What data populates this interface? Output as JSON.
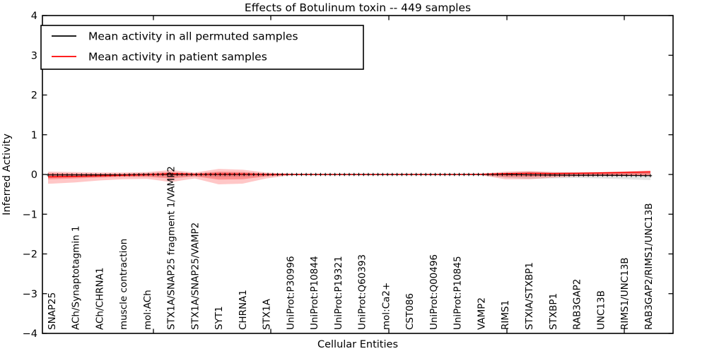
{
  "title": "Effects of Botulinum toxin -- 449 samples",
  "legend": {
    "items": [
      {
        "label": "Mean activity in all permuted samples",
        "color": "#000000"
      },
      {
        "label": "Mean activity in patient samples",
        "color": "#ff0000"
      }
    ]
  },
  "chart_data": {
    "type": "line",
    "title": "Effects of Botulinum toxin -- 449 samples",
    "xlabel": "Cellular Entities",
    "ylabel": "Inferred Activity",
    "ylim": [
      -4,
      4
    ],
    "grid": false,
    "legend_position": "upper left",
    "ytick_labels": [
      "4",
      "3",
      "2",
      "1",
      "0",
      "−1",
      "−2",
      "−3",
      "−4"
    ],
    "ytick_values": [
      4,
      3,
      2,
      1,
      0,
      -1,
      -2,
      -3,
      -4
    ],
    "categories": [
      "SNAP25",
      "ACh/Synaptotagmin 1",
      "ACh/CHRNA1",
      "muscle contraction",
      "mol:ACh",
      "STX1A/SNAP25 fragment 1/VAMP2",
      "STX1A/SNAP25/VAMP2",
      "SYT1",
      "CHRNA1",
      "STX1A",
      "UniProt:P30996",
      "UniProt:P10844",
      "UniProt:P19321",
      "UniProt:Q60393",
      "mol:Ca2+",
      "CST086",
      "UniProt:Q00496",
      "UniProt:P10845",
      "VAMP2",
      "RIMS1",
      "STXIA/STXBP1",
      "STXBP1",
      "RAB3GAP2",
      "UNC13B",
      "RIMS1/UNC13B",
      "RAB3GAP2/RIMS1/UNC13B"
    ],
    "series": [
      {
        "name": "Mean activity in all permuted samples",
        "color": "#000000",
        "marker": "plus",
        "values": [
          -0.01,
          -0.01,
          -0.01,
          -0.01,
          0,
          0,
          0,
          0,
          0,
          0,
          0,
          0,
          0,
          0,
          0,
          0,
          0,
          0,
          0,
          0,
          -0.01,
          -0.015,
          -0.02,
          -0.02,
          -0.025,
          -0.03
        ]
      },
      {
        "name": "Mean activity in patient samples",
        "color": "#ff0000",
        "marker": "none",
        "values": [
          -0.06,
          -0.05,
          -0.035,
          -0.02,
          -0.01,
          0.02,
          0.005,
          0.01,
          0.01,
          0,
          0,
          0,
          0,
          0,
          0,
          0,
          0,
          0,
          0.005,
          0.02,
          0.03,
          0.025,
          0.03,
          0.04,
          0.05,
          0.065
        ]
      }
    ],
    "bands": [
      {
        "name": "permuted-samples-range",
        "color": "#000000",
        "opacity": 0.1,
        "upper": [
          0.03,
          0.02,
          0.02,
          0.02,
          0.02,
          0.04,
          0.02,
          0.05,
          0.04,
          0.02,
          0.01,
          0.005,
          0.005,
          0.005,
          0.005,
          0.005,
          0.005,
          0.005,
          0.015,
          0.05,
          0.07,
          0.06,
          0.055,
          0.06,
          0.07,
          0.08
        ],
        "lower": [
          -0.08,
          -0.07,
          -0.06,
          -0.05,
          -0.04,
          -0.06,
          -0.04,
          -0.07,
          -0.06,
          -0.03,
          -0.01,
          -0.005,
          -0.005,
          -0.005,
          -0.005,
          -0.005,
          -0.005,
          -0.005,
          -0.015,
          -0.08,
          -0.11,
          -0.1,
          -0.09,
          -0.1,
          -0.12,
          -0.14
        ]
      },
      {
        "name": "patient-samples-range-outer",
        "color": "#ff0000",
        "opacity": 0.22,
        "upper": [
          0.07,
          0.06,
          0.05,
          0.05,
          0.06,
          0.11,
          0.05,
          0.14,
          0.12,
          0.05,
          0.02,
          0.008,
          0.008,
          0.008,
          0.008,
          0.008,
          0.008,
          0.008,
          0.02,
          0.07,
          0.09,
          0.06,
          0.05,
          0.06,
          0.08,
          0.1
        ],
        "lower": [
          -0.23,
          -0.2,
          -0.15,
          -0.12,
          -0.11,
          -0.19,
          -0.1,
          -0.25,
          -0.23,
          -0.1,
          -0.02,
          -0.008,
          -0.008,
          -0.008,
          -0.008,
          -0.008,
          -0.008,
          -0.008,
          -0.02,
          -0.12,
          -0.12,
          -0.08,
          -0.05,
          -0.04,
          -0.04,
          -0.03
        ]
      },
      {
        "name": "patient-samples-range-inner",
        "color": "#ff0000",
        "opacity": 0.28,
        "upper": [
          0.03,
          0.025,
          0.02,
          0.02,
          0.03,
          0.06,
          0.025,
          0.07,
          0.06,
          0.025,
          0.01,
          0.004,
          0.004,
          0.004,
          0.004,
          0.004,
          0.004,
          0.004,
          0.01,
          0.035,
          0.05,
          0.03,
          0.025,
          0.03,
          0.05,
          0.07
        ],
        "lower": [
          -0.12,
          -0.1,
          -0.08,
          -0.06,
          -0.06,
          -0.1,
          -0.05,
          -0.13,
          -0.12,
          -0.05,
          -0.01,
          -0.004,
          -0.004,
          -0.004,
          -0.004,
          -0.004,
          -0.004,
          -0.004,
          -0.01,
          -0.06,
          -0.06,
          -0.04,
          -0.025,
          -0.02,
          -0.02,
          -0.015
        ]
      }
    ]
  }
}
